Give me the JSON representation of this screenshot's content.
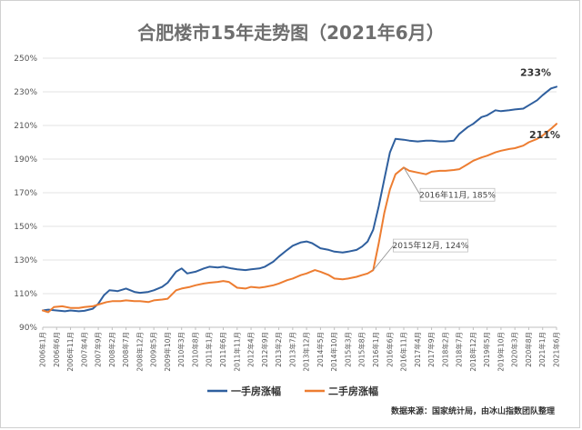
{
  "chart_data": {
    "type": "line",
    "title": "合肥楼市15年走势图（2021年6月）",
    "xlabel": "",
    "ylabel": "",
    "ylim": [
      90,
      250
    ],
    "yticks": [
      "90%",
      "110%",
      "130%",
      "150%",
      "170%",
      "190%",
      "210%",
      "230%",
      "250%"
    ],
    "ytick_values": [
      90,
      110,
      130,
      150,
      170,
      190,
      210,
      230,
      250
    ],
    "grid": "horizontal",
    "x_start": "2006-01",
    "x_end": "2021-06",
    "xticks": [
      "2006年1月",
      "2006年6月",
      "2006年11月",
      "2007年4月",
      "2007年9月",
      "2008年2月",
      "2008年7月",
      "2008年12月",
      "2009年5月",
      "2009年10月",
      "2010年3月",
      "2010年8月",
      "2011年1月",
      "2011年6月",
      "2011年11月",
      "2012年4月",
      "2012年9月",
      "2013年2月",
      "2013年7月",
      "2013年12月",
      "2014年5月",
      "2014年10月",
      "2015年3月",
      "2015年8月",
      "2016年1月",
      "2016年6月",
      "2016年11月",
      "2017年4月",
      "2017年9月",
      "2018年2月",
      "2018年7月",
      "2018年12月",
      "2019年5月",
      "2019年10月",
      "2020年3月",
      "2020年8月",
      "2021年1月",
      "2021年6月"
    ],
    "xtick_dates": [
      "2006-01",
      "2006-06",
      "2006-11",
      "2007-04",
      "2007-09",
      "2008-02",
      "2008-07",
      "2008-12",
      "2009-05",
      "2009-10",
      "2010-03",
      "2010-08",
      "2011-01",
      "2011-06",
      "2011-11",
      "2012-04",
      "2012-09",
      "2013-02",
      "2013-07",
      "2013-12",
      "2014-05",
      "2014-10",
      "2015-03",
      "2015-08",
      "2016-01",
      "2016-06",
      "2016-11",
      "2017-04",
      "2017-09",
      "2018-02",
      "2018-07",
      "2018-12",
      "2019-05",
      "2019-10",
      "2020-03",
      "2020-08",
      "2021-01",
      "2021-06"
    ],
    "series": [
      {
        "name": "一手房涨幅",
        "color": "#2f5f9e",
        "end_label": "233%",
        "points": [
          [
            "2006-01",
            100
          ],
          [
            "2006-03",
            100.5
          ],
          [
            "2006-06",
            100
          ],
          [
            "2006-09",
            99.5
          ],
          [
            "2006-11",
            100
          ],
          [
            "2007-02",
            99.5
          ],
          [
            "2007-04",
            99.8
          ],
          [
            "2007-07",
            101
          ],
          [
            "2007-09",
            104
          ],
          [
            "2007-11",
            109
          ],
          [
            "2008-01",
            112
          ],
          [
            "2008-04",
            111.5
          ],
          [
            "2008-07",
            113
          ],
          [
            "2008-10",
            111
          ],
          [
            "2008-12",
            110.5
          ],
          [
            "2009-03",
            111
          ],
          [
            "2009-05",
            112
          ],
          [
            "2009-08",
            114
          ],
          [
            "2009-10",
            116.5
          ],
          [
            "2010-01",
            123
          ],
          [
            "2010-03",
            125
          ],
          [
            "2010-05",
            122
          ],
          [
            "2010-08",
            123
          ],
          [
            "2010-11",
            125
          ],
          [
            "2011-01",
            126
          ],
          [
            "2011-04",
            125.5
          ],
          [
            "2011-06",
            126
          ],
          [
            "2011-09",
            125
          ],
          [
            "2011-11",
            124.5
          ],
          [
            "2012-02",
            124
          ],
          [
            "2012-04",
            124.5
          ],
          [
            "2012-07",
            125
          ],
          [
            "2012-09",
            126
          ],
          [
            "2012-12",
            129
          ],
          [
            "2013-02",
            132
          ],
          [
            "2013-05",
            136
          ],
          [
            "2013-07",
            138.5
          ],
          [
            "2013-10",
            140.5
          ],
          [
            "2013-12",
            141
          ],
          [
            "2014-02",
            140
          ],
          [
            "2014-05",
            137
          ],
          [
            "2014-08",
            136
          ],
          [
            "2014-10",
            135
          ],
          [
            "2015-01",
            134.5
          ],
          [
            "2015-03",
            135
          ],
          [
            "2015-06",
            136
          ],
          [
            "2015-08",
            138
          ],
          [
            "2015-10",
            141
          ],
          [
            "2015-12",
            148
          ],
          [
            "2016-02",
            162
          ],
          [
            "2016-04",
            178
          ],
          [
            "2016-06",
            194
          ],
          [
            "2016-08",
            202
          ],
          [
            "2016-11",
            201.5
          ],
          [
            "2017-01",
            201
          ],
          [
            "2017-04",
            200.5
          ],
          [
            "2017-07",
            201
          ],
          [
            "2017-09",
            201
          ],
          [
            "2017-12",
            200.5
          ],
          [
            "2018-02",
            200.5
          ],
          [
            "2018-05",
            201
          ],
          [
            "2018-07",
            205
          ],
          [
            "2018-10",
            209
          ],
          [
            "2018-12",
            211
          ],
          [
            "2019-03",
            215
          ],
          [
            "2019-05",
            216
          ],
          [
            "2019-08",
            219
          ],
          [
            "2019-10",
            218.5
          ],
          [
            "2020-01",
            219
          ],
          [
            "2020-03",
            219.5
          ],
          [
            "2020-06",
            220
          ],
          [
            "2020-08",
            222
          ],
          [
            "2020-11",
            225
          ],
          [
            "2021-01",
            228
          ],
          [
            "2021-04",
            232
          ],
          [
            "2021-06",
            233
          ]
        ]
      },
      {
        "name": "二手房涨幅",
        "color": "#ed7d31",
        "end_label": "211%",
        "points": [
          [
            "2006-01",
            100
          ],
          [
            "2006-03",
            99
          ],
          [
            "2006-05",
            102
          ],
          [
            "2006-08",
            102.5
          ],
          [
            "2006-11",
            101.5
          ],
          [
            "2007-02",
            101.5
          ],
          [
            "2007-04",
            102
          ],
          [
            "2007-07",
            102.5
          ],
          [
            "2007-09",
            103.5
          ],
          [
            "2007-12",
            105
          ],
          [
            "2008-02",
            105.5
          ],
          [
            "2008-05",
            105.5
          ],
          [
            "2008-07",
            106
          ],
          [
            "2008-10",
            105.5
          ],
          [
            "2008-12",
            105.5
          ],
          [
            "2009-03",
            105
          ],
          [
            "2009-05",
            106
          ],
          [
            "2009-08",
            106.5
          ],
          [
            "2009-10",
            107
          ],
          [
            "2010-01",
            112
          ],
          [
            "2010-03",
            113
          ],
          [
            "2010-06",
            114
          ],
          [
            "2010-08",
            115
          ],
          [
            "2010-11",
            116
          ],
          [
            "2011-01",
            116.5
          ],
          [
            "2011-04",
            117
          ],
          [
            "2011-06",
            117.5
          ],
          [
            "2011-08",
            117
          ],
          [
            "2011-11",
            113.5
          ],
          [
            "2012-02",
            113
          ],
          [
            "2012-04",
            114
          ],
          [
            "2012-07",
            113.5
          ],
          [
            "2012-09",
            114
          ],
          [
            "2012-12",
            115
          ],
          [
            "2013-02",
            116
          ],
          [
            "2013-05",
            118
          ],
          [
            "2013-07",
            119
          ],
          [
            "2013-10",
            121
          ],
          [
            "2013-12",
            122
          ],
          [
            "2014-03",
            124
          ],
          [
            "2014-05",
            123
          ],
          [
            "2014-08",
            121
          ],
          [
            "2014-10",
            119
          ],
          [
            "2015-01",
            118.5
          ],
          [
            "2015-03",
            119
          ],
          [
            "2015-06",
            120
          ],
          [
            "2015-08",
            121
          ],
          [
            "2015-10",
            122
          ],
          [
            "2015-12",
            124
          ],
          [
            "2016-02",
            140
          ],
          [
            "2016-04",
            158
          ],
          [
            "2016-06",
            172
          ],
          [
            "2016-08",
            181
          ],
          [
            "2016-11",
            185
          ],
          [
            "2017-01",
            183
          ],
          [
            "2017-04",
            182
          ],
          [
            "2017-07",
            181
          ],
          [
            "2017-09",
            182.5
          ],
          [
            "2017-12",
            183
          ],
          [
            "2018-02",
            183
          ],
          [
            "2018-05",
            183.5
          ],
          [
            "2018-07",
            184
          ],
          [
            "2018-10",
            187
          ],
          [
            "2018-12",
            189
          ],
          [
            "2019-03",
            191
          ],
          [
            "2019-05",
            192
          ],
          [
            "2019-08",
            194
          ],
          [
            "2019-10",
            195
          ],
          [
            "2020-01",
            196
          ],
          [
            "2020-03",
            196.5
          ],
          [
            "2020-06",
            198
          ],
          [
            "2020-08",
            200
          ],
          [
            "2020-11",
            202
          ],
          [
            "2021-01",
            204
          ],
          [
            "2021-04",
            208
          ],
          [
            "2021-06",
            211
          ]
        ]
      }
    ],
    "annotations": [
      {
        "text": "2016年11月, 185%",
        "date": "2016-11",
        "value": 185
      },
      {
        "text": "2015年12月, 124%",
        "date": "2015-12",
        "value": 124
      }
    ],
    "legend_position": "bottom-center",
    "source": "数据来源：国家统计局，由冰山指数团队整理"
  }
}
